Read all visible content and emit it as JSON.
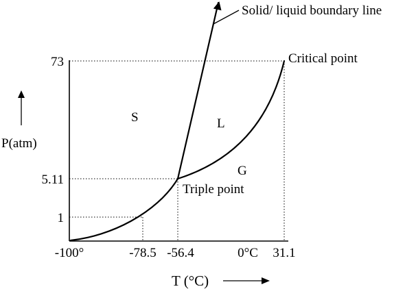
{
  "labels": {
    "solid_liquid": "Solid/ liquid boundary line",
    "critical_point": "Critical point",
    "triple_point": "Triple point",
    "region_solid": "S",
    "region_liquid": "L",
    "region_gas": "G"
  },
  "axes": {
    "y_label": "P(atm)",
    "x_label": "T (°C)",
    "y_ticks": [
      "73",
      "5.11",
      "1"
    ],
    "x_ticks": [
      "-100°",
      "-78.5",
      "-56.4",
      "0°C",
      "31.1"
    ]
  }
}
